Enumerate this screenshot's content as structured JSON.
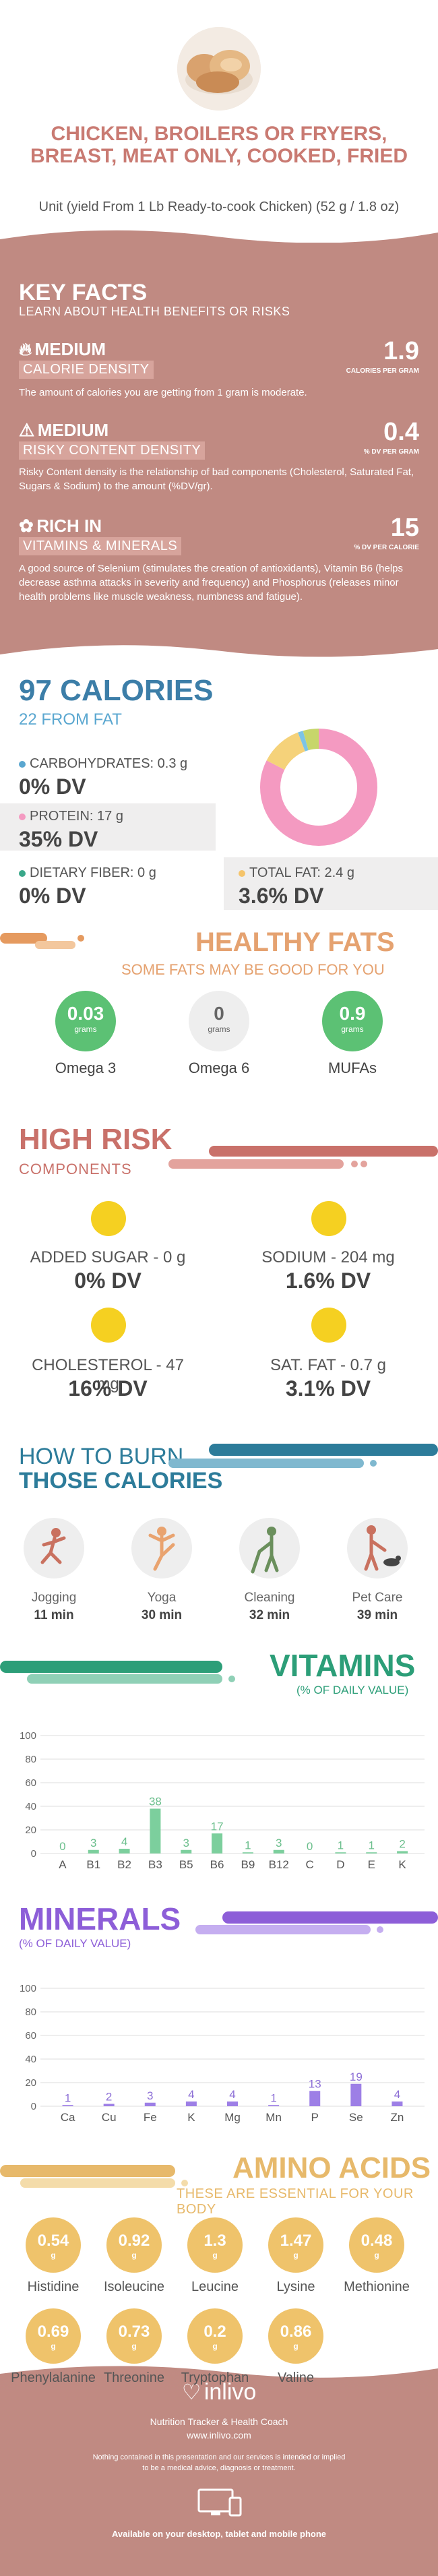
{
  "header": {
    "title": "CHICKEN, BROILERS OR FRYERS, BREAST, MEAT ONLY, COOKED, FRIED",
    "serving": "Unit (yield From 1 Lb Ready-to-cook Chicken) (52 g / 1.8 oz)"
  },
  "key_facts": {
    "title": "KEY FACTS",
    "subtitle": "LEARN ABOUT HEALTH BENEFITS OR RISKS",
    "items": [
      {
        "level": "MEDIUM",
        "label": "CALORIE DENSITY",
        "value": "1.9",
        "unit": "CALORIES PER GRAM",
        "text": "The amount of calories you are getting from 1 gram is moderate.",
        "icon": "flame-icon"
      },
      {
        "level": "MEDIUM",
        "label": "RISKY CONTENT DENSITY",
        "value": "0.4",
        "unit": "% DV PER GRAM",
        "text": "Risky Content density is the relationship of bad components (Cholesterol, Saturated Fat, Sugars & Sodium) to the amount (%DV/gr).",
        "icon": "warning-icon"
      },
      {
        "level": "RICH  IN",
        "label": "VITAMINS & MINERALS",
        "value": "15",
        "unit": "% DV PER CALORIE",
        "text": "A good source of Selenium (stimulates the creation of antioxidants), Vitamin B6 (helps decrease asthma attacks in severity and frequency) and Phosphorus (releases minor health problems like muscle weakness, numbness and fatigue).",
        "icon": "leaf-icon"
      }
    ]
  },
  "calories": {
    "title": "97 CALORIES",
    "from_fat": "22 FROM FAT",
    "nutrients": [
      {
        "label": "CARBOHYDRATES: 0.3 g",
        "dv": "0% DV",
        "color": "#5aa7d0"
      },
      {
        "label": "PROTEIN: 17 g",
        "dv": "35% DV",
        "color": "#f49ac1"
      },
      {
        "label": "DIETARY FIBER: 0 g",
        "dv": "0% DV",
        "color": "#3aa88a"
      },
      {
        "label": "TOTAL FAT: 2.4 g",
        "dv": "3.6% DV",
        "color": "#f5c46b"
      }
    ],
    "donut": [
      {
        "name": "Protein",
        "value": 17,
        "color": "#f49ac1"
      },
      {
        "name": "Total fat",
        "value": 2.4,
        "color": "#f5d27a"
      },
      {
        "name": "Carbohydrates",
        "value": 0.3,
        "color": "#7cc4e6"
      },
      {
        "name": "Other",
        "value": 0.9,
        "color": "#c7d66b"
      }
    ]
  },
  "healthy_fats": {
    "title": "HEALTHY FATS",
    "subtitle": "SOME FATS MAY BE GOOD FOR YOU",
    "unit": "grams",
    "items": [
      {
        "name": "Omega 3",
        "value": "0.03",
        "color": "#5cc174"
      },
      {
        "name": "Omega 6",
        "value": "0",
        "color": "#eeeeee"
      },
      {
        "name": "MUFAs",
        "value": "0.9",
        "color": "#5cc174"
      }
    ]
  },
  "high_risk": {
    "title": "HIGH RISK",
    "subtitle": "COMPONENTS",
    "items": [
      {
        "label": "ADDED SUGAR - 0 g",
        "dv": "0% DV"
      },
      {
        "label": "SODIUM - 204 mg",
        "dv": "1.6% DV"
      },
      {
        "label": "CHOLESTEROL - 47 mg",
        "dv": "16% DV"
      },
      {
        "label": "SAT. FAT - 0.7 g",
        "dv": "3.1% DV"
      }
    ]
  },
  "burn": {
    "title_1": "HOW TO BURN",
    "title_2": "THOSE CALORIES",
    "activities": [
      {
        "name": "Jogging",
        "minutes": "11 min",
        "icon": "jogging-icon"
      },
      {
        "name": "Yoga",
        "minutes": "30 min",
        "icon": "yoga-icon"
      },
      {
        "name": "Cleaning",
        "minutes": "32 min",
        "icon": "cleaning-icon"
      },
      {
        "name": "Pet Care",
        "minutes": "39 min",
        "icon": "pet-care-icon"
      }
    ]
  },
  "vitamins_section": {
    "title": "VITAMINS",
    "subtitle": "(% OF DAILY VALUE)"
  },
  "minerals_section": {
    "title": "MINERALS",
    "subtitle": "(% OF DAILY VALUE)"
  },
  "chart_data": [
    {
      "type": "bar",
      "title": "VITAMINS",
      "ylabel": "(% OF DAILY VALUE)",
      "categories": [
        "A",
        "B1",
        "B2",
        "B3",
        "B5",
        "B6",
        "B9",
        "B12",
        "C",
        "D",
        "E",
        "K"
      ],
      "values": [
        0,
        3,
        4,
        38,
        3,
        17,
        1,
        3,
        0,
        1,
        1,
        2
      ],
      "ylim": [
        0,
        100
      ],
      "yticks": [
        0,
        20,
        40,
        60,
        80,
        100
      ],
      "color": "#7ccf9d",
      "label_color": "#6cbf8d",
      "grid": true
    },
    {
      "type": "bar",
      "title": "MINERALS",
      "ylabel": "(% OF DAILY VALUE)",
      "categories": [
        "Ca",
        "Cu",
        "Fe",
        "K",
        "Mg",
        "Mn",
        "P",
        "Se",
        "Zn"
      ],
      "values": [
        1,
        2,
        3,
        4,
        4,
        1,
        13,
        19,
        4
      ],
      "ylim": [
        0,
        100
      ],
      "yticks": [
        0,
        20,
        40,
        60,
        80,
        100
      ],
      "color": "#9d7fe6",
      "label_color": "#8d6fd6",
      "grid": true
    }
  ],
  "amino_acids": {
    "title": "AMINO ACIDS",
    "subtitle": "THESE ARE ESSENTIAL FOR YOUR BODY",
    "unit": "g",
    "items": [
      {
        "name": "Histidine",
        "value": "0.54"
      },
      {
        "name": "Isoleucine",
        "value": "0.92"
      },
      {
        "name": "Leucine",
        "value": "1.3"
      },
      {
        "name": "Lysine",
        "value": "1.47"
      },
      {
        "name": "Methionine",
        "value": "0.48"
      },
      {
        "name": "Phenylalanine",
        "value": "0.69"
      },
      {
        "name": "Threonine",
        "value": "0.73"
      },
      {
        "name": "Tryptophan",
        "value": "0.2"
      },
      {
        "name": "Valine",
        "value": "0.86"
      }
    ]
  },
  "footer": {
    "brand": "inlivo",
    "tagline": "Nutrition Tracker & Health Coach",
    "url": "www.inlivo.com",
    "disclaimer_1": "Nothing contained in this presentation and our services is intended or implied",
    "disclaimer_2": "to be a medical advice, diagnosis or treatment.",
    "devices": "Available on your desktop, tablet and mobile phone"
  }
}
